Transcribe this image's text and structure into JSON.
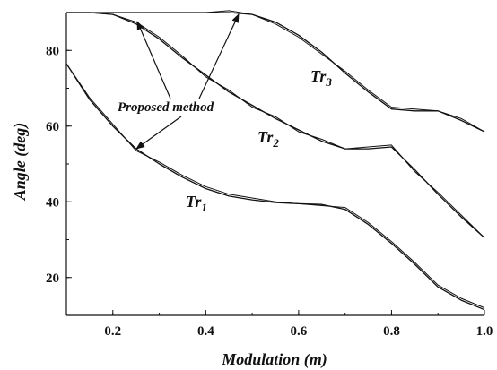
{
  "chart_data": {
    "type": "line",
    "xlabel": "Modulation (m)",
    "ylabel": "Angle (deg)",
    "xlim": [
      0.1,
      1.0
    ],
    "ylim": [
      10,
      90
    ],
    "x_ticks": [
      0.2,
      0.4,
      0.6,
      0.8,
      1.0
    ],
    "x_tick_labels": [
      "0.2",
      "0.4",
      "0.6",
      "0.8",
      "1.0"
    ],
    "y_ticks": [
      20,
      40,
      60,
      80
    ],
    "y_tick_labels": [
      "20",
      "40",
      "60",
      "80"
    ],
    "grid": false,
    "annotation": "Proposed method",
    "series": [
      {
        "name": "Tr1",
        "label_text": "Tr",
        "label_sub": "1",
        "x": [
          0.1,
          0.15,
          0.2,
          0.25,
          0.3,
          0.35,
          0.4,
          0.45,
          0.5,
          0.55,
          0.6,
          0.65,
          0.7,
          0.75,
          0.8,
          0.85,
          0.9,
          0.95,
          1.0
        ],
        "values": [
          76.5,
          67,
          60,
          54,
          50,
          46.5,
          43.5,
          41.5,
          40.5,
          39.8,
          39.5,
          39.3,
          38,
          34,
          29,
          23.5,
          17.5,
          14,
          11.5
        ],
        "compare_values": [
          76.5,
          67.5,
          60.5,
          53.5,
          50.5,
          47,
          44,
          42,
          41,
          40,
          39.5,
          39,
          38.5,
          34.5,
          29.5,
          24,
          18,
          14.5,
          12
        ]
      },
      {
        "name": "Tr2",
        "label_text": "Tr",
        "label_sub": "2",
        "x": [
          0.1,
          0.15,
          0.2,
          0.25,
          0.3,
          0.35,
          0.4,
          0.45,
          0.5,
          0.55,
          0.6,
          0.65,
          0.7,
          0.75,
          0.8,
          0.85,
          0.9,
          0.95,
          1.0
        ],
        "values": [
          90,
          90,
          89.5,
          87,
          83,
          78,
          73.5,
          69,
          65.5,
          62,
          59,
          56,
          54,
          54,
          54.5,
          48.5,
          42,
          36,
          30.5
        ],
        "compare_values": [
          90,
          90,
          89.5,
          87.5,
          83.5,
          78.5,
          73,
          69.5,
          65,
          62.5,
          58.5,
          56.5,
          54,
          54.5,
          55,
          48,
          42.5,
          36.5,
          30.5
        ]
      },
      {
        "name": "Tr3",
        "label_text": "Tr",
        "label_sub": "3",
        "x": [
          0.1,
          0.15,
          0.2,
          0.25,
          0.3,
          0.35,
          0.4,
          0.45,
          0.5,
          0.55,
          0.6,
          0.65,
          0.7,
          0.75,
          0.8,
          0.85,
          0.9,
          0.95,
          1.0
        ],
        "values": [
          90,
          90,
          90,
          90,
          90,
          90,
          90,
          90,
          89.5,
          87.5,
          84,
          79.5,
          74,
          69,
          64.5,
          64,
          64,
          61.5,
          58.5
        ],
        "compare_values": [
          90,
          90,
          90,
          90,
          90,
          90,
          90,
          90.5,
          89.5,
          87,
          83.5,
          79,
          74.5,
          69.5,
          65,
          64.5,
          64,
          62,
          58.5
        ]
      }
    ]
  }
}
